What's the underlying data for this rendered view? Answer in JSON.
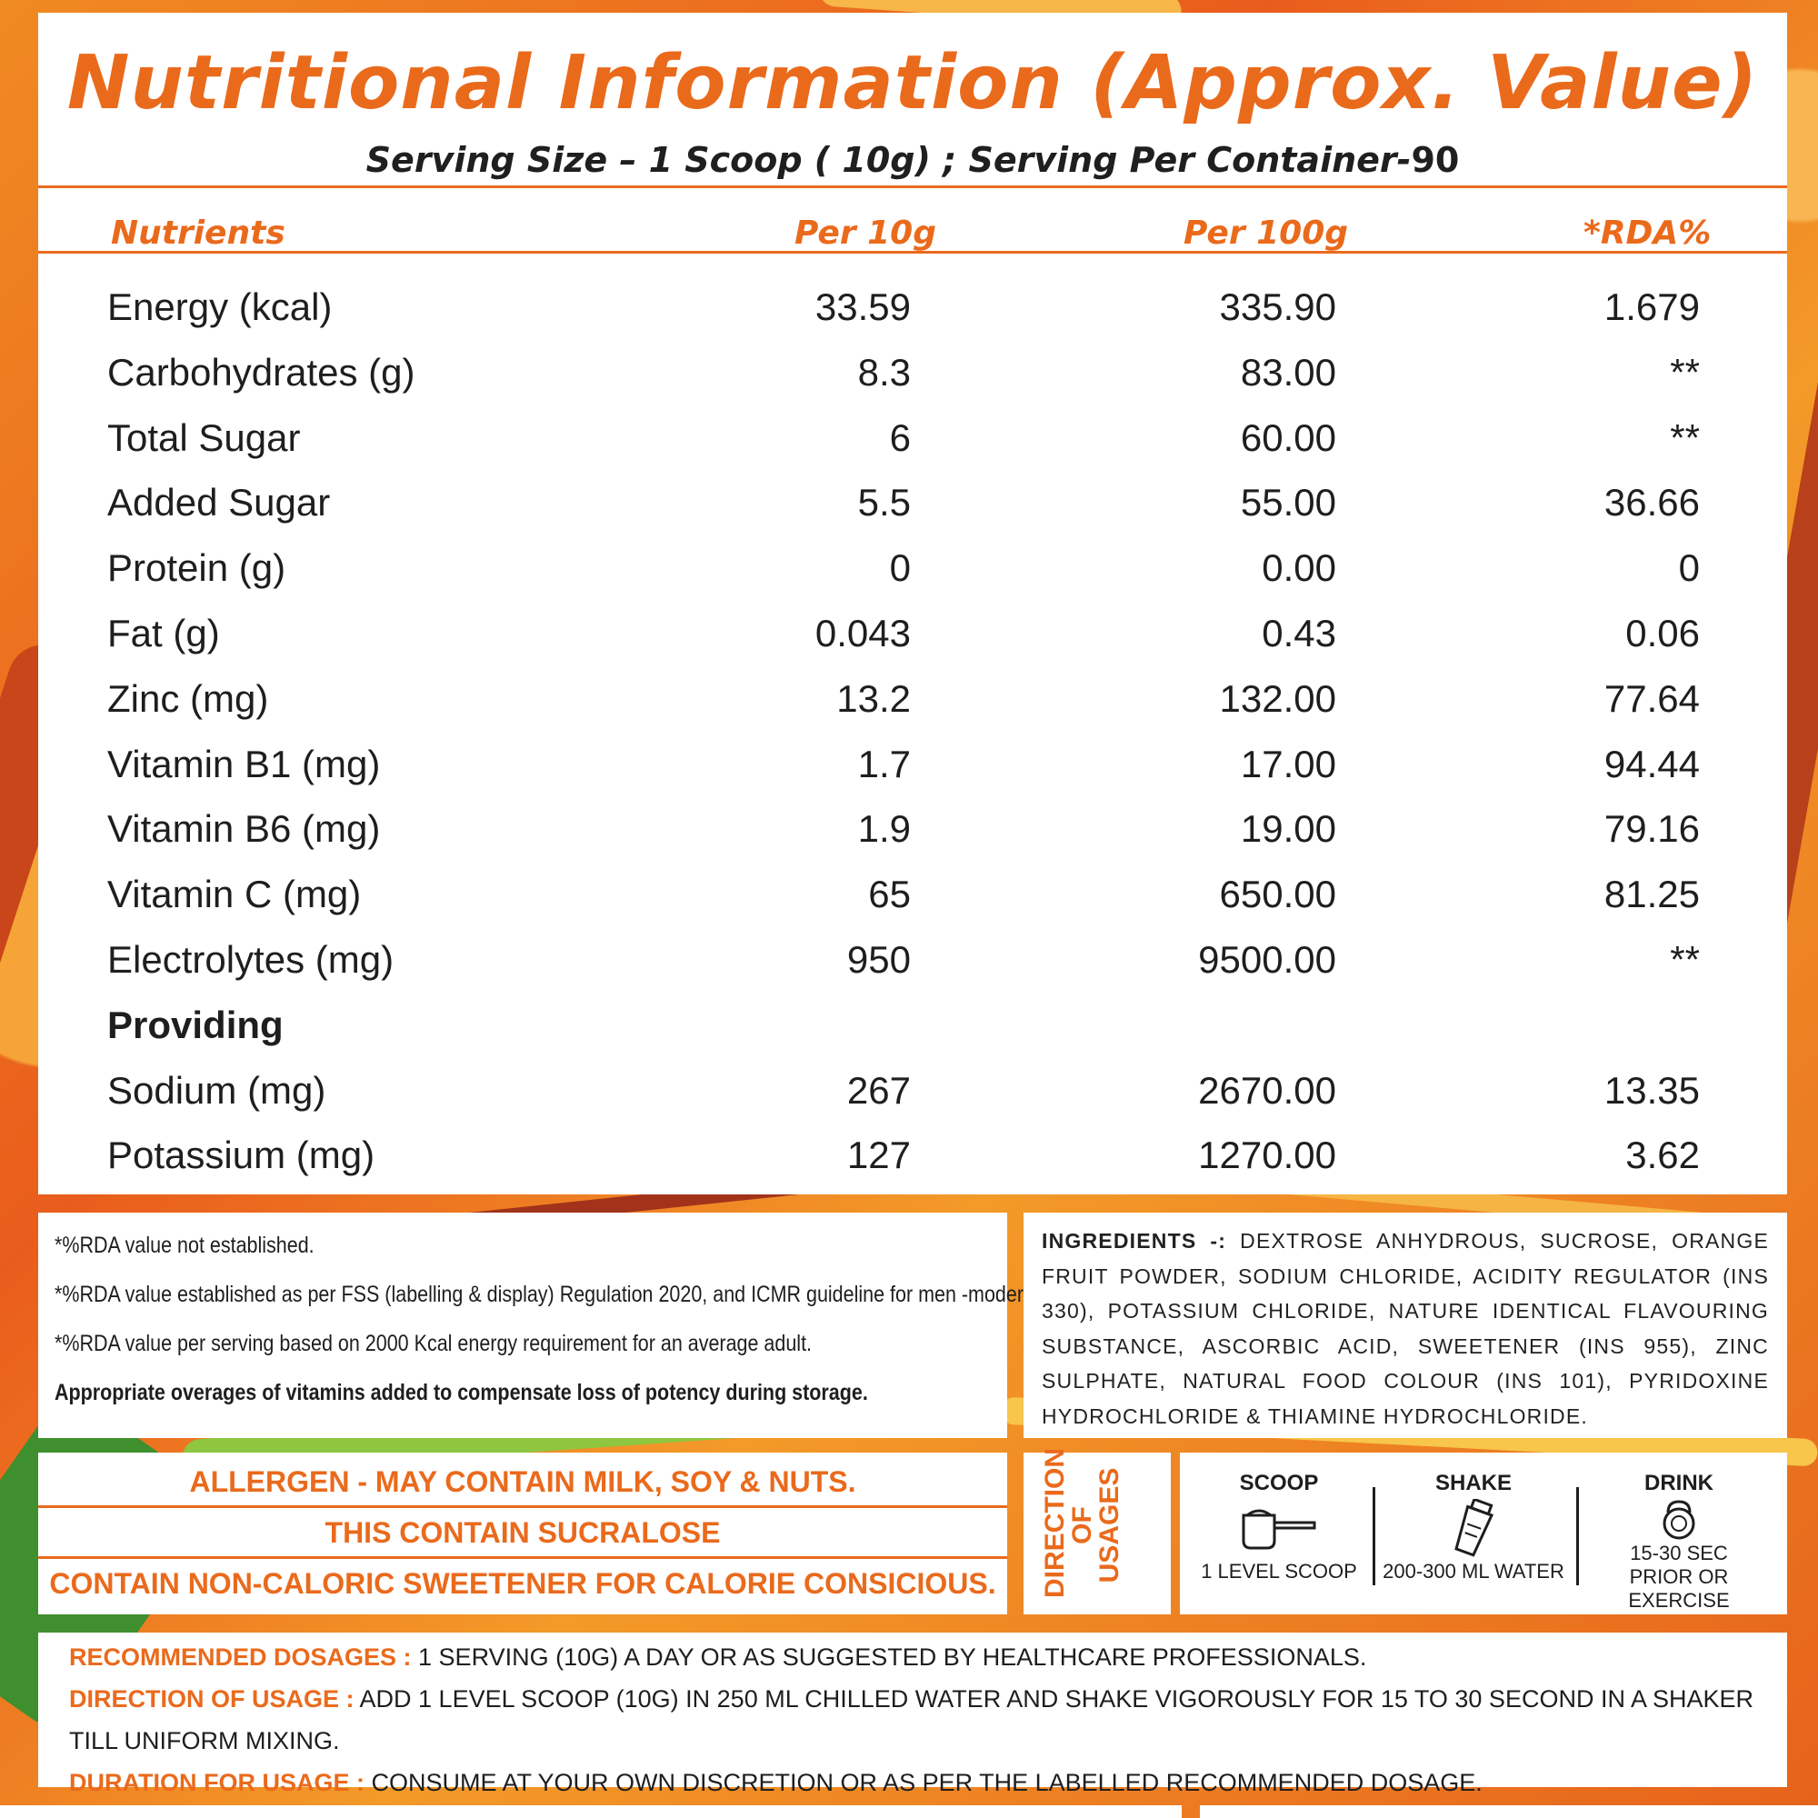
{
  "title": "Nutritional Information (Approx. Value)",
  "serving": {
    "text": "Serving Size – 1 Scoop ( 10g) ; Serving Per Container-",
    "count": "90"
  },
  "table": {
    "headers": [
      "Nutrients",
      "Per 10g",
      "Per 100g",
      "*RDA%"
    ],
    "rows": [
      [
        "Energy (kcal)",
        "33.59",
        "335.90",
        "1.679"
      ],
      [
        "Carbohydrates (g)",
        "8.3",
        "83.00",
        "**"
      ],
      [
        "Total Sugar",
        "6",
        "60.00",
        "**"
      ],
      [
        "Added Sugar",
        "5.5",
        "55.00",
        "36.66"
      ],
      [
        "Protein (g)",
        "0",
        "0.00",
        "0"
      ],
      [
        "Fat (g)",
        "0.043",
        "0.43",
        "0.06"
      ],
      [
        "Zinc (mg)",
        "13.2",
        "132.00",
        "77.64"
      ],
      [
        "Vitamin B1 (mg)",
        "1.7",
        "17.00",
        "94.44"
      ],
      [
        "Vitamin B6 (mg)",
        "1.9",
        "19.00",
        "79.16"
      ],
      [
        "Vitamin C (mg)",
        "65",
        "650.00",
        "81.25"
      ],
      [
        "Electrolytes (mg)",
        "950",
        "9500.00",
        "**"
      ],
      [
        "Providing",
        "",
        "",
        ""
      ],
      [
        "Sodium (mg)",
        "267",
        "2670.00",
        "13.35"
      ],
      [
        "Potassium (mg)",
        "127",
        "1270.00",
        "3.62"
      ]
    ]
  },
  "notes": [
    "*%RDA value not established.",
    "*%RDA value established as per FSS (labelling & display) Regulation 2020, and ICMR guideline for men -moderate work.",
    "*%RDA value per serving based on 2000 Kcal energy requirement for an average adult.",
    "Appropriate overages of vitamins added to compensate loss of potency during  storage."
  ],
  "ingredients": {
    "label": "INGREDIENTS -:",
    "text": "DEXTROSE ANHYDROUS, SUCROSE, ORANGE FRUIT POWDER, SODIUM CHLORIDE, ACIDITY REGULATOR (INS 330), POTASSIUM CHLORIDE, NATURE IDENTICAL FLAVOURING SUBSTANCE, ASCORBIC ACID, SWEETENER (INS 955), ZINC SULPHATE, NATURAL FOOD COLOUR (INS 101), PYRIDOXINE HYDROCHLORIDE & THIAMINE HYDROCHLORIDE."
  },
  "allergen": [
    "ALLERGEN -  MAY CONTAIN MILK, SOY & NUTS.",
    "THIS CONTAIN SUCRALOSE",
    "CONTAIN NON-CALORIC SWEETENER FOR CALORIE CONSICIOUS."
  ],
  "direction": {
    "label_lines": [
      "DIRECTION",
      "OF",
      "USAGES"
    ],
    "steps": [
      {
        "title": "SCOOP",
        "icon": "scoop-icon",
        "caption": "1 LEVEL SCOOP"
      },
      {
        "title": "SHAKE",
        "icon": "shaker-icon",
        "caption": "200-300 ML WATER"
      },
      {
        "title": "DRINK",
        "icon": "kettlebell-icon",
        "caption": "15-30 SEC\nPRIOR OR EXERCISE"
      }
    ]
  },
  "dosage": [
    {
      "label": "RECOMMENDED DOSAGES :",
      "text": " 1 SERVING (10G) A DAY OR AS SUGGESTED BY HEALTHCARE PROFESSIONALS."
    },
    {
      "label": "DIRECTION OF USAGE :",
      "text": " ADD 1 LEVEL SCOOP (10G) IN 250 ML CHILLED WATER AND SHAKE VIGOROUSLY FOR 15 TO 30 SECOND IN A SHAKER TILL UNIFORM MIXING."
    },
    {
      "label": "DURATION FOR USAGE :",
      "text": " CONSUME AT YOUR OWN DISCRETION OR AS PER THE LABELLED RECOMMENDED DOSAGE."
    }
  ],
  "colors": {
    "accent": "#ea6a1c",
    "text": "#1e1e1e",
    "panel": "#ffffff"
  }
}
